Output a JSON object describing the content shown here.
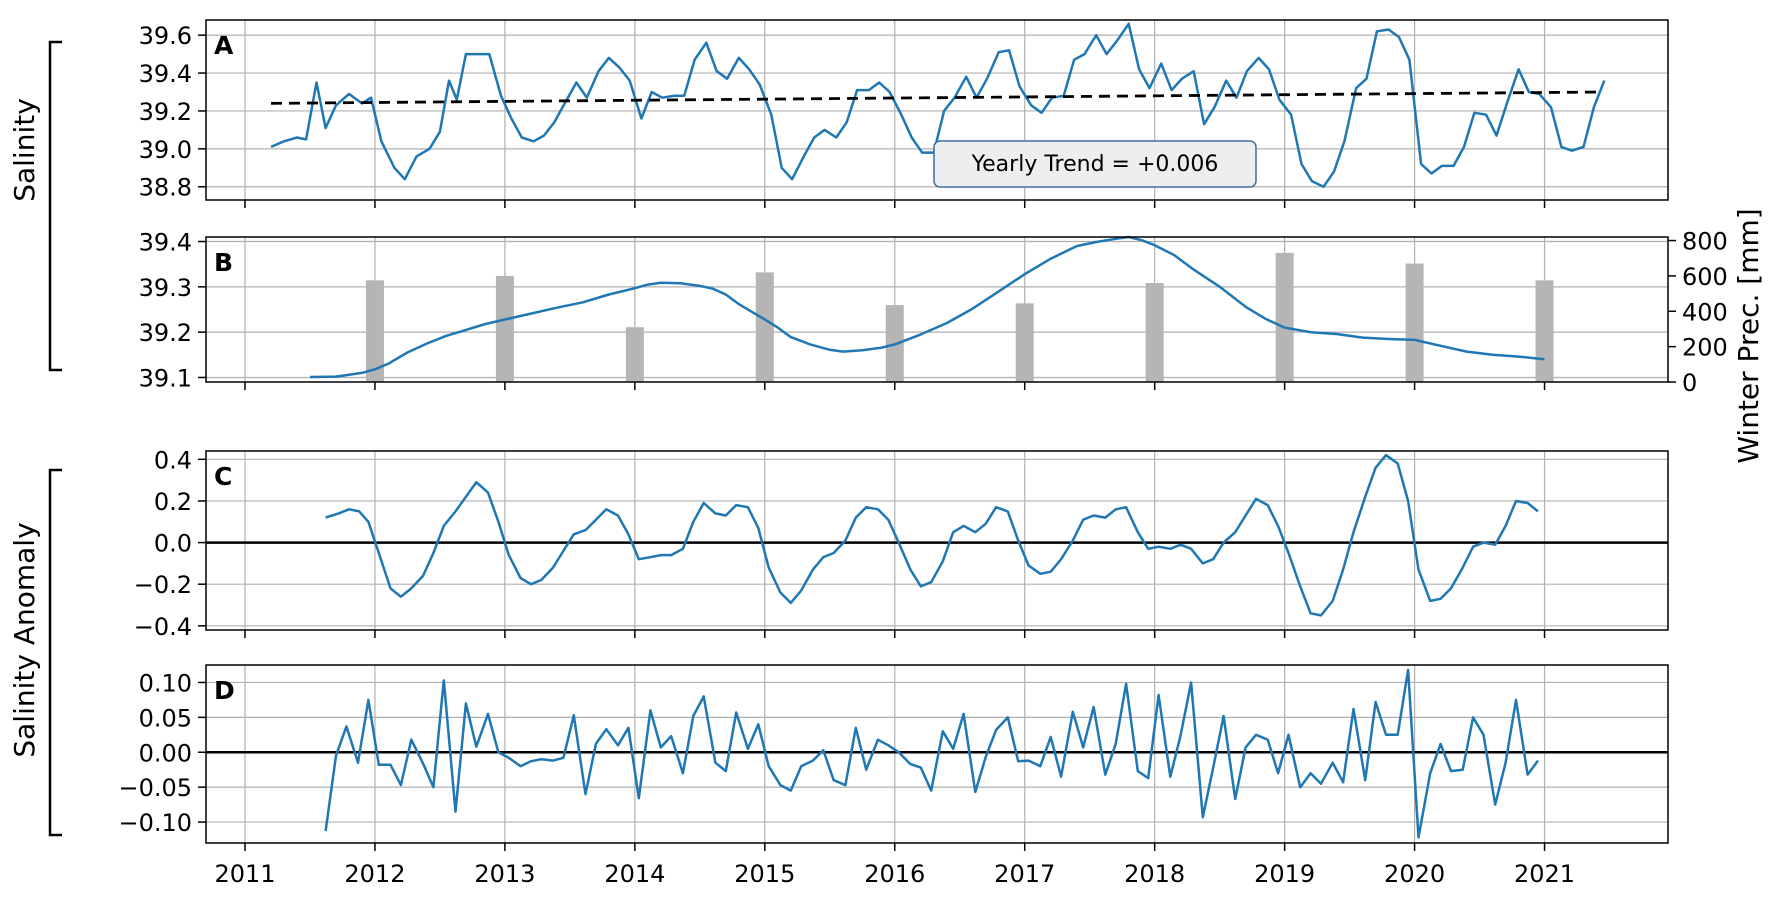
{
  "figure": {
    "group_labels": [
      "Salinity",
      "Salinity Anomaly"
    ],
    "right_axis_label": "Winter Prec. [mm]",
    "x_ticks": [
      "2011",
      "2012",
      "2013",
      "2014",
      "2015",
      "2016",
      "2017",
      "2018",
      "2019",
      "2020",
      "2021"
    ],
    "annotation": "Yearly Trend = +0.006",
    "colors": {
      "series": "#1f77b4",
      "bars": "#b5b5b5",
      "trend": "#000000",
      "zero_line": "#000000",
      "grid": "#b0b0b0"
    }
  },
  "chart_data": [
    {
      "panel": "A",
      "type": "line",
      "xlim": [
        2010.7,
        2021.95
      ],
      "ylim": [
        38.73,
        39.68
      ],
      "yticks": [
        "38.8",
        "39.0",
        "39.2",
        "39.4",
        "39.6"
      ],
      "grid": true,
      "series": [
        {
          "x": [
            2011.2,
            2011.3,
            2011.4,
            2011.47,
            2011.55,
            2011.62,
            2011.7,
            2011.8,
            2011.9,
            2011.97,
            2012.05,
            2012.15,
            2012.23,
            2012.32,
            2012.42,
            2012.5,
            2012.57,
            2012.63,
            2012.7,
            2012.8,
            2012.88,
            2012.97,
            2013.05,
            2013.13,
            2013.22,
            2013.3,
            2013.38,
            2013.46,
            2013.55,
            2013.63,
            2013.72,
            2013.8,
            2013.88,
            2013.96,
            2014.05,
            2014.13,
            2014.21,
            2014.3,
            2014.38,
            2014.46,
            2014.55,
            2014.63,
            2014.71,
            2014.8,
            2014.88,
            2014.96,
            2015.05,
            2015.13,
            2015.21,
            2015.3,
            2015.38,
            2015.46,
            2015.55,
            2015.63,
            2015.71,
            2015.8,
            2015.88,
            2015.96,
            2016.05,
            2016.13,
            2016.21,
            2016.3,
            2016.38,
            2016.46,
            2016.55,
            2016.63,
            2016.71,
            2016.8,
            2016.88,
            2016.96,
            2017.05,
            2017.13,
            2017.21,
            2017.3,
            2017.38,
            2017.46,
            2017.55,
            2017.63,
            2017.71,
            2017.8,
            2017.88,
            2017.96,
            2018.05,
            2018.13,
            2018.21,
            2018.3,
            2018.38,
            2018.46,
            2018.55,
            2018.63,
            2018.71,
            2018.8,
            2018.88,
            2018.96,
            2019.05,
            2019.13,
            2019.21,
            2019.3,
            2019.38,
            2019.46,
            2019.55,
            2019.63,
            2019.71,
            2019.8,
            2019.88,
            2019.96,
            2020.05,
            2020.13,
            2020.21,
            2020.3,
            2020.38,
            2020.46,
            2020.55,
            2020.63,
            2020.71,
            2020.8,
            2020.88,
            2020.96,
            2021.05,
            2021.13,
            2021.21,
            2021.3,
            2021.38,
            2021.46
          ],
          "y": [
            39.01,
            39.04,
            39.06,
            39.05,
            39.35,
            39.11,
            39.23,
            39.29,
            39.24,
            39.27,
            39.04,
            38.9,
            38.84,
            38.96,
            39.0,
            39.09,
            39.36,
            39.26,
            39.5,
            39.5,
            39.5,
            39.28,
            39.16,
            39.06,
            39.04,
            39.07,
            39.14,
            39.24,
            39.35,
            39.27,
            39.41,
            39.48,
            39.43,
            39.36,
            39.16,
            39.3,
            39.27,
            39.28,
            39.28,
            39.47,
            39.56,
            39.41,
            39.37,
            39.48,
            39.42,
            39.34,
            39.18,
            38.9,
            38.84,
            38.96,
            39.06,
            39.1,
            39.06,
            39.14,
            39.31,
            39.31,
            39.35,
            39.3,
            39.18,
            39.06,
            38.98,
            38.98,
            39.2,
            39.27,
            39.38,
            39.27,
            39.37,
            39.51,
            39.52,
            39.33,
            39.23,
            39.19,
            39.27,
            39.28,
            39.47,
            39.5,
            39.6,
            39.5,
            39.57,
            39.66,
            39.42,
            39.32,
            39.45,
            39.31,
            39.37,
            39.41,
            39.13,
            39.22,
            39.36,
            39.27,
            39.41,
            39.48,
            39.42,
            39.26,
            39.18,
            38.92,
            38.83,
            38.8,
            38.88,
            39.04,
            39.32,
            39.37,
            39.62,
            39.63,
            39.59,
            39.47,
            38.92,
            38.87,
            38.91,
            38.91,
            39.01,
            39.19,
            39.18,
            39.07,
            39.24,
            39.42,
            39.3,
            39.29,
            39.22,
            39.01,
            38.99,
            39.01,
            39.22,
            39.36
          ]
        }
      ],
      "trend_line": {
        "x": [
          2011.2,
          2021.45
        ],
        "y": [
          39.24,
          39.3
        ]
      }
    },
    {
      "panel": "B",
      "type": "line",
      "xlim": [
        2010.7,
        2021.95
      ],
      "ylim": [
        39.09,
        39.41
      ],
      "yticks": [
        "39.1",
        "39.2",
        "39.3",
        "39.4"
      ],
      "y2lim": [
        0,
        820
      ],
      "y2ticks": [
        "0",
        "200",
        "400",
        "600",
        "800"
      ],
      "grid": true,
      "series": [
        {
          "x": [
            2011.5,
            2011.7,
            2011.9,
            2012.0,
            2012.1,
            2012.25,
            2012.4,
            2012.55,
            2012.7,
            2012.85,
            2013.0,
            2013.2,
            2013.4,
            2013.6,
            2013.8,
            2014.0,
            2014.1,
            2014.2,
            2014.35,
            2014.5,
            2014.6,
            2014.7,
            2014.8,
            2014.9,
            2015.0,
            2015.1,
            2015.2,
            2015.35,
            2015.5,
            2015.6,
            2015.75,
            2015.9,
            2016.0,
            2016.2,
            2016.4,
            2016.6,
            2016.8,
            2017.0,
            2017.2,
            2017.4,
            2017.55,
            2017.7,
            2017.8,
            2017.9,
            2018.0,
            2018.15,
            2018.3,
            2018.5,
            2018.7,
            2018.85,
            2019.0,
            2019.2,
            2019.4,
            2019.6,
            2019.8,
            2020.0,
            2020.2,
            2020.4,
            2020.6,
            2020.8,
            2021.0
          ],
          "y": [
            39.101,
            39.102,
            39.11,
            39.118,
            39.13,
            39.155,
            39.175,
            39.192,
            39.205,
            39.218,
            39.228,
            39.241,
            39.254,
            39.266,
            39.283,
            39.297,
            39.305,
            39.309,
            39.308,
            39.302,
            39.296,
            39.283,
            39.262,
            39.245,
            39.228,
            39.21,
            39.189,
            39.173,
            39.161,
            39.157,
            39.16,
            39.166,
            39.173,
            39.195,
            39.22,
            39.252,
            39.29,
            39.328,
            39.362,
            39.39,
            39.399,
            39.406,
            39.41,
            39.403,
            39.392,
            39.37,
            39.338,
            39.3,
            39.256,
            39.23,
            39.21,
            39.2,
            39.196,
            39.188,
            39.185,
            39.183,
            39.17,
            39.157,
            39.15,
            39.146,
            39.14
          ]
        }
      ],
      "bars": {
        "name": "Winter Prec. [mm]",
        "x": [
          2012.0,
          2013.0,
          2014.0,
          2015.0,
          2016.0,
          2017.0,
          2018.0,
          2019.0,
          2020.0,
          2021.0
        ],
        "values": [
          575,
          600,
          310,
          620,
          435,
          445,
          560,
          730,
          670,
          575
        ]
      }
    },
    {
      "panel": "C",
      "type": "line",
      "xlim": [
        2010.7,
        2021.95
      ],
      "ylim": [
        -0.42,
        0.44
      ],
      "yticks": [
        "−0.4",
        "−0.2",
        "0.0",
        "0.2",
        "0.4"
      ],
      "grid": true,
      "zero_line": true,
      "series": [
        {
          "x": [
            2011.62,
            2011.72,
            2011.8,
            2011.88,
            2011.95,
            2012.03,
            2012.12,
            2012.2,
            2012.28,
            2012.37,
            2012.45,
            2012.53,
            2012.62,
            2012.7,
            2012.78,
            2012.87,
            2012.95,
            2013.03,
            2013.12,
            2013.2,
            2013.28,
            2013.37,
            2013.45,
            2013.53,
            2013.62,
            2013.7,
            2013.78,
            2013.87,
            2013.95,
            2014.03,
            2014.12,
            2014.2,
            2014.28,
            2014.37,
            2014.45,
            2014.53,
            2014.62,
            2014.7,
            2014.78,
            2014.87,
            2014.95,
            2015.03,
            2015.12,
            2015.2,
            2015.28,
            2015.37,
            2015.45,
            2015.53,
            2015.62,
            2015.7,
            2015.78,
            2015.87,
            2015.95,
            2016.03,
            2016.12,
            2016.2,
            2016.28,
            2016.37,
            2016.45,
            2016.53,
            2016.62,
            2016.7,
            2016.78,
            2016.87,
            2016.95,
            2017.03,
            2017.12,
            2017.2,
            2017.28,
            2017.37,
            2017.45,
            2017.53,
            2017.62,
            2017.7,
            2017.78,
            2017.87,
            2017.95,
            2018.03,
            2018.12,
            2018.2,
            2018.28,
            2018.37,
            2018.45,
            2018.53,
            2018.62,
            2018.7,
            2018.78,
            2018.87,
            2018.95,
            2019.03,
            2019.12,
            2019.2,
            2019.28,
            2019.37,
            2019.45,
            2019.53,
            2019.62,
            2019.7,
            2019.78,
            2019.87,
            2019.95,
            2020.03,
            2020.12,
            2020.2,
            2020.28,
            2020.37,
            2020.45,
            2020.53,
            2020.62,
            2020.7,
            2020.78,
            2020.87,
            2020.95
          ],
          "y": [
            0.12,
            0.14,
            0.16,
            0.15,
            0.1,
            -0.05,
            -0.22,
            -0.26,
            -0.22,
            -0.16,
            -0.05,
            0.08,
            0.15,
            0.22,
            0.29,
            0.24,
            0.1,
            -0.06,
            -0.17,
            -0.2,
            -0.18,
            -0.12,
            -0.04,
            0.04,
            0.06,
            0.11,
            0.16,
            0.13,
            0.04,
            -0.08,
            -0.07,
            -0.06,
            -0.06,
            -0.03,
            0.1,
            0.19,
            0.14,
            0.13,
            0.18,
            0.17,
            0.07,
            -0.12,
            -0.24,
            -0.29,
            -0.23,
            -0.13,
            -0.07,
            -0.05,
            0.01,
            0.12,
            0.17,
            0.16,
            0.11,
            0.0,
            -0.13,
            -0.21,
            -0.19,
            -0.09,
            0.05,
            0.08,
            0.05,
            0.09,
            0.17,
            0.15,
            0.01,
            -0.11,
            -0.15,
            -0.14,
            -0.08,
            0.01,
            0.11,
            0.13,
            0.12,
            0.16,
            0.17,
            0.05,
            -0.03,
            -0.02,
            -0.03,
            -0.01,
            -0.03,
            -0.1,
            -0.08,
            0.0,
            0.05,
            0.13,
            0.21,
            0.18,
            0.08,
            -0.05,
            -0.21,
            -0.34,
            -0.35,
            -0.28,
            -0.13,
            0.05,
            0.22,
            0.36,
            0.42,
            0.38,
            0.2,
            -0.13,
            -0.28,
            -0.27,
            -0.22,
            -0.12,
            -0.02,
            0.0,
            -0.01,
            0.08,
            0.2,
            0.19,
            0.15
          ]
        }
      ]
    },
    {
      "panel": "D",
      "type": "line",
      "xlim": [
        2010.7,
        2021.95
      ],
      "ylim": [
        -0.13,
        0.125
      ],
      "yticks": [
        "−0.10",
        "−0.05",
        "0.00",
        "0.05",
        "0.10"
      ],
      "grid": true,
      "zero_line": true,
      "series": [
        {
          "x": [
            2011.62,
            2011.7,
            2011.78,
            2011.87,
            2011.95,
            2012.03,
            2012.12,
            2012.2,
            2012.28,
            2012.37,
            2012.45,
            2012.53,
            2012.62,
            2012.7,
            2012.78,
            2012.87,
            2012.95,
            2013.03,
            2013.12,
            2013.2,
            2013.28,
            2013.37,
            2013.45,
            2013.53,
            2013.62,
            2013.7,
            2013.78,
            2013.87,
            2013.95,
            2014.03,
            2014.12,
            2014.2,
            2014.28,
            2014.37,
            2014.45,
            2014.53,
            2014.62,
            2014.7,
            2014.78,
            2014.87,
            2014.95,
            2015.03,
            2015.12,
            2015.2,
            2015.28,
            2015.37,
            2015.45,
            2015.53,
            2015.62,
            2015.7,
            2015.78,
            2015.87,
            2015.95,
            2016.03,
            2016.12,
            2016.2,
            2016.28,
            2016.37,
            2016.45,
            2016.53,
            2016.62,
            2016.7,
            2016.78,
            2016.87,
            2016.95,
            2017.03,
            2017.12,
            2017.2,
            2017.28,
            2017.37,
            2017.45,
            2017.53,
            2017.62,
            2017.7,
            2017.78,
            2017.87,
            2017.95,
            2018.03,
            2018.12,
            2018.2,
            2018.28,
            2018.37,
            2018.45,
            2018.53,
            2018.62,
            2018.7,
            2018.78,
            2018.87,
            2018.95,
            2019.03,
            2019.12,
            2019.2,
            2019.28,
            2019.37,
            2019.45,
            2019.53,
            2019.62,
            2019.7,
            2019.78,
            2019.87,
            2019.95,
            2020.03,
            2020.12,
            2020.2,
            2020.28,
            2020.37,
            2020.45,
            2020.53,
            2020.62,
            2020.7,
            2020.78,
            2020.87,
            2020.95
          ],
          "y": [
            -0.113,
            -0.005,
            0.037,
            -0.015,
            0.075,
            -0.018,
            -0.018,
            -0.047,
            0.018,
            -0.016,
            -0.05,
            0.103,
            -0.085,
            0.07,
            0.008,
            0.055,
            0.0,
            -0.008,
            -0.02,
            -0.013,
            -0.01,
            -0.012,
            -0.008,
            0.053,
            -0.06,
            0.012,
            0.033,
            0.01,
            0.035,
            -0.066,
            0.06,
            0.007,
            0.023,
            -0.03,
            0.052,
            0.08,
            -0.015,
            -0.027,
            0.057,
            0.005,
            0.04,
            -0.02,
            -0.047,
            -0.055,
            -0.02,
            -0.012,
            0.003,
            -0.04,
            -0.047,
            0.035,
            -0.025,
            0.018,
            0.01,
            0.0,
            -0.017,
            -0.022,
            -0.055,
            0.03,
            0.005,
            0.055,
            -0.057,
            -0.007,
            0.032,
            0.05,
            -0.013,
            -0.012,
            -0.02,
            0.022,
            -0.035,
            0.058,
            0.007,
            0.065,
            -0.032,
            0.012,
            0.098,
            -0.027,
            -0.037,
            0.082,
            -0.035,
            0.025,
            0.1,
            -0.093,
            -0.022,
            0.052,
            -0.067,
            0.007,
            0.025,
            0.018,
            -0.03,
            0.025,
            -0.05,
            -0.03,
            -0.045,
            -0.015,
            -0.043,
            0.062,
            -0.04,
            0.072,
            0.025,
            0.025,
            0.118,
            -0.122,
            -0.03,
            0.012,
            -0.027,
            -0.025,
            0.05,
            0.025,
            -0.075,
            -0.015,
            0.075,
            -0.032,
            -0.012
          ]
        }
      ]
    }
  ]
}
